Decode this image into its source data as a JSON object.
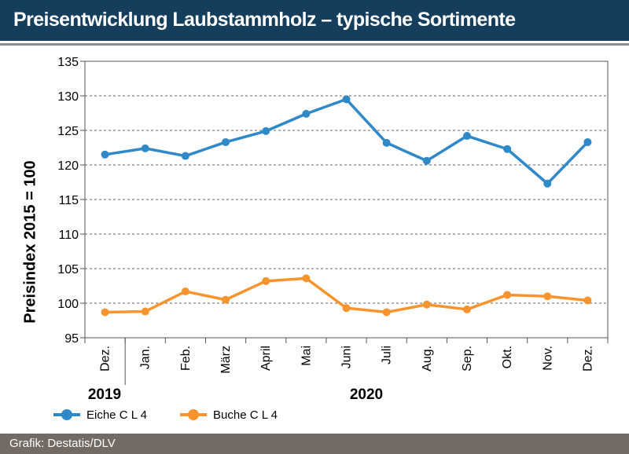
{
  "header": {
    "title": "Preisentwicklung Laubstammholz – typische Sortimente"
  },
  "footer": {
    "source": "Grafik: Destatis/DLV"
  },
  "colors": {
    "header_bg": "#153e5c",
    "footer_bg": "#736a63",
    "eiche": "#2f88c8",
    "buche": "#f7942d"
  },
  "chart_data": {
    "type": "line",
    "title": "Preisentwicklung Laubstammholz – typische Sortimente",
    "ylabel": "Preisindex 2015 = 100",
    "xlabel": "",
    "categories": [
      "Dez.",
      "Jan.",
      "Feb.",
      "März",
      "April",
      "Mai",
      "Juni",
      "Juli",
      "Aug.",
      "Sep.",
      "Okt.",
      "Nov.",
      "Dez."
    ],
    "year_labels": [
      "2019",
      "2020"
    ],
    "ylim": [
      95,
      135
    ],
    "yticks": [
      95,
      100,
      105,
      110,
      115,
      120,
      125,
      130,
      135
    ],
    "grid": true,
    "legend_position": "bottom-left",
    "series": [
      {
        "name": "Eiche C L 4",
        "color": "#2f88c8",
        "values": [
          121.5,
          122.4,
          121.3,
          123.3,
          124.9,
          127.4,
          129.5,
          123.2,
          120.6,
          124.2,
          122.3,
          117.3,
          123.3
        ]
      },
      {
        "name": "Buche C L 4",
        "color": "#f7942d",
        "values": [
          98.7,
          98.8,
          101.7,
          100.5,
          103.2,
          103.6,
          99.3,
          98.7,
          99.8,
          99.1,
          101.2,
          101.0,
          100.4
        ]
      }
    ]
  }
}
